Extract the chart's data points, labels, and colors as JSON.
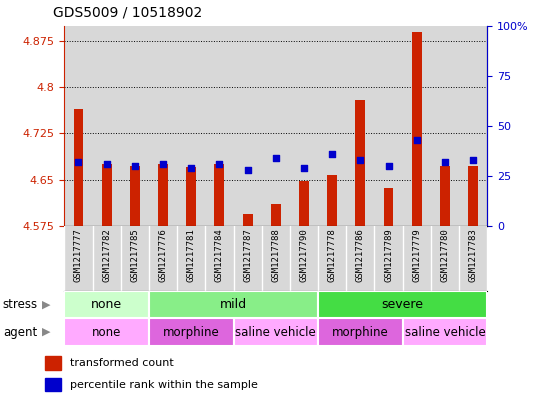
{
  "title": "GDS5009 / 10518902",
  "samples": [
    "GSM1217777",
    "GSM1217782",
    "GSM1217785",
    "GSM1217776",
    "GSM1217781",
    "GSM1217784",
    "GSM1217787",
    "GSM1217788",
    "GSM1217790",
    "GSM1217778",
    "GSM1217786",
    "GSM1217789",
    "GSM1217779",
    "GSM1217780",
    "GSM1217783"
  ],
  "bar_values": [
    4.765,
    4.675,
    4.672,
    4.675,
    4.67,
    4.675,
    4.595,
    4.611,
    4.648,
    4.657,
    4.78,
    4.636,
    4.89,
    4.672,
    4.672
  ],
  "percentile_values": [
    32,
    31,
    30,
    31,
    29,
    31,
    28,
    34,
    29,
    36,
    33,
    30,
    43,
    32,
    33
  ],
  "ymin": 4.575,
  "ymax": 4.9,
  "yticks": [
    4.575,
    4.65,
    4.725,
    4.8,
    4.875
  ],
  "right_yticks": [
    0,
    25,
    50,
    75,
    100
  ],
  "bar_color": "#cc2200",
  "dot_color": "#0000cc",
  "col_bg_color": "#d8d8d8",
  "stress_groups": [
    {
      "label": "none",
      "start": 0,
      "end": 3,
      "color": "#ccffcc"
    },
    {
      "label": "mild",
      "start": 3,
      "end": 9,
      "color": "#88ee88"
    },
    {
      "label": "severe",
      "start": 9,
      "end": 15,
      "color": "#44dd44"
    }
  ],
  "agent_groups": [
    {
      "label": "none",
      "start": 0,
      "end": 3,
      "color": "#ffaaff"
    },
    {
      "label": "morphine",
      "start": 3,
      "end": 6,
      "color": "#dd66dd"
    },
    {
      "label": "saline vehicle",
      "start": 6,
      "end": 9,
      "color": "#ffaaff"
    },
    {
      "label": "morphine",
      "start": 9,
      "end": 12,
      "color": "#dd66dd"
    },
    {
      "label": "saline vehicle",
      "start": 12,
      "end": 15,
      "color": "#ffaaff"
    }
  ]
}
